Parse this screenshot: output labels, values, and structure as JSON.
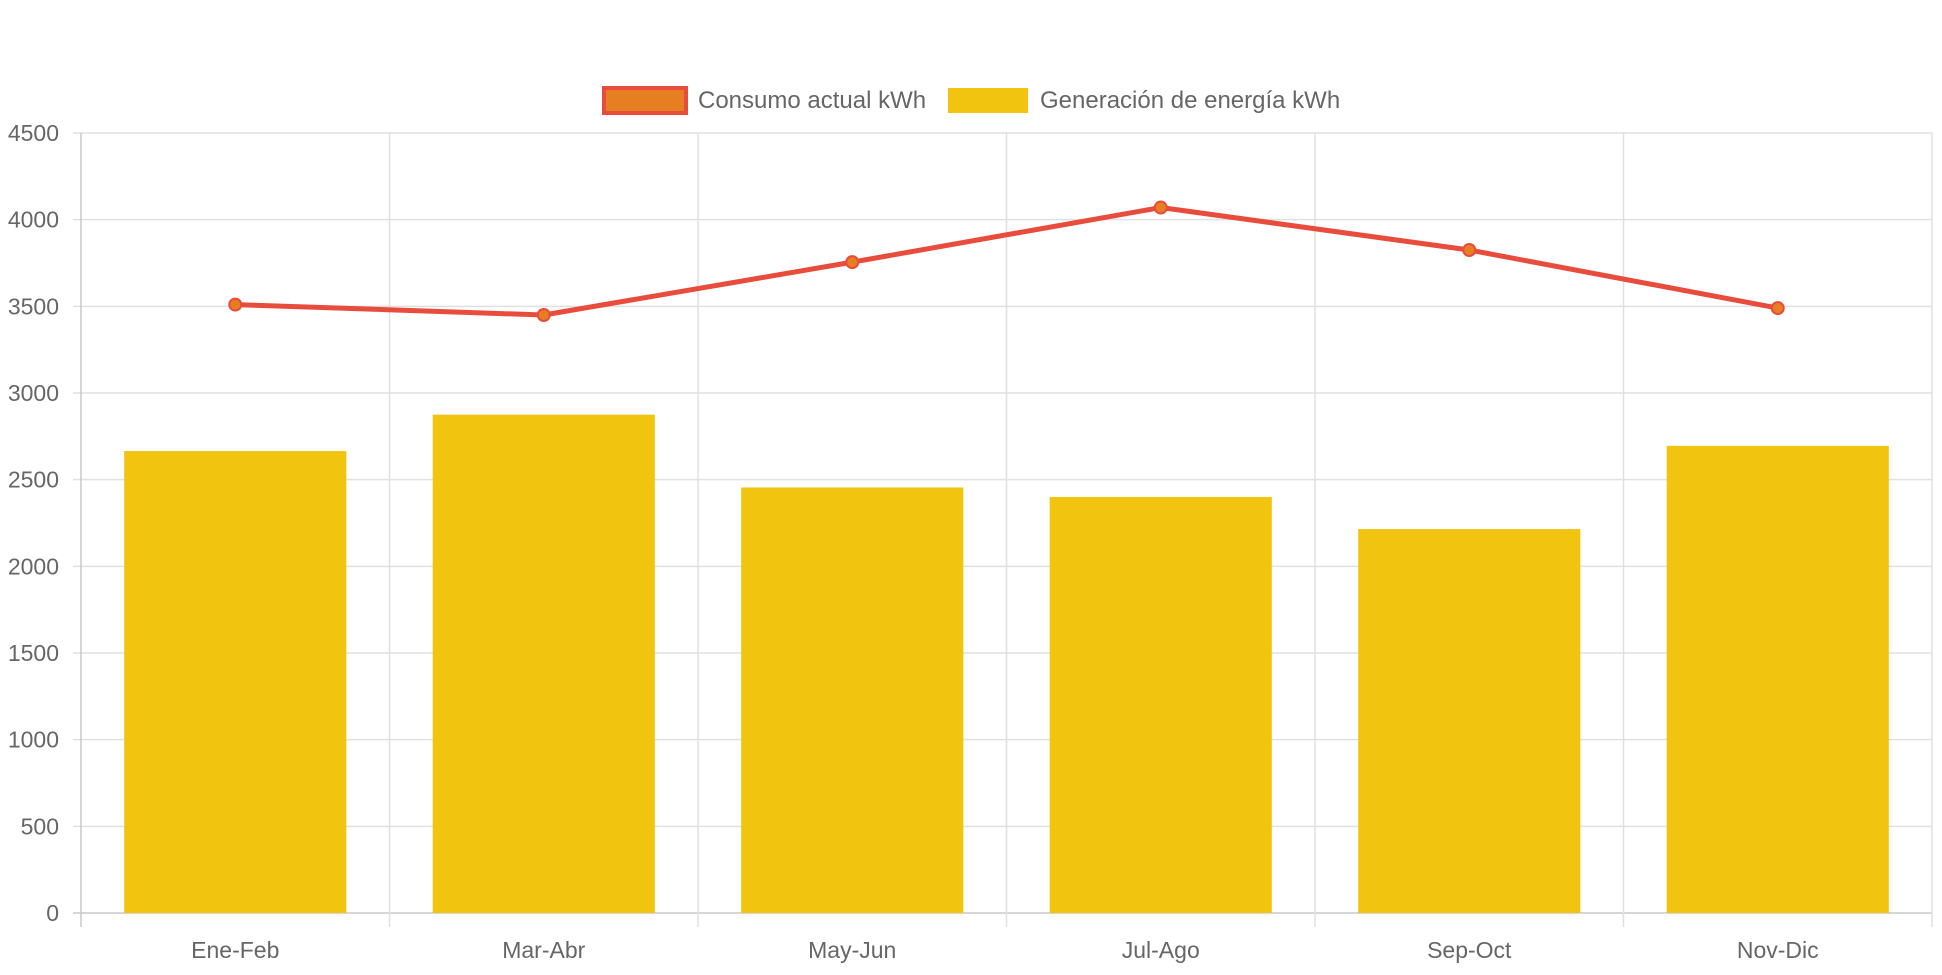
{
  "chart_data": {
    "type": "bar",
    "categories": [
      "Ene-Feb",
      "Mar-Abr",
      "May-Jun",
      "Jul-Ago",
      "Sep-Oct",
      "Nov-Dic"
    ],
    "series": [
      {
        "name": "Consumo actual kWh",
        "type": "line",
        "values": [
          3510,
          3450,
          3755,
          4070,
          3825,
          3490
        ],
        "color": "#e74c3c",
        "point_color": "#e67e22"
      },
      {
        "name": "Generación de energía kWh",
        "type": "bar",
        "values": [
          2665,
          2875,
          2455,
          2400,
          2215,
          2695
        ],
        "color": "#f1c40f"
      }
    ],
    "ylim": [
      0,
      4500
    ],
    "yticks": [
      0,
      500,
      1000,
      1500,
      2000,
      2500,
      3000,
      3500,
      4000,
      4500
    ],
    "grid": true,
    "legend_position": "top-center",
    "title": "",
    "xlabel": "",
    "ylabel": ""
  }
}
